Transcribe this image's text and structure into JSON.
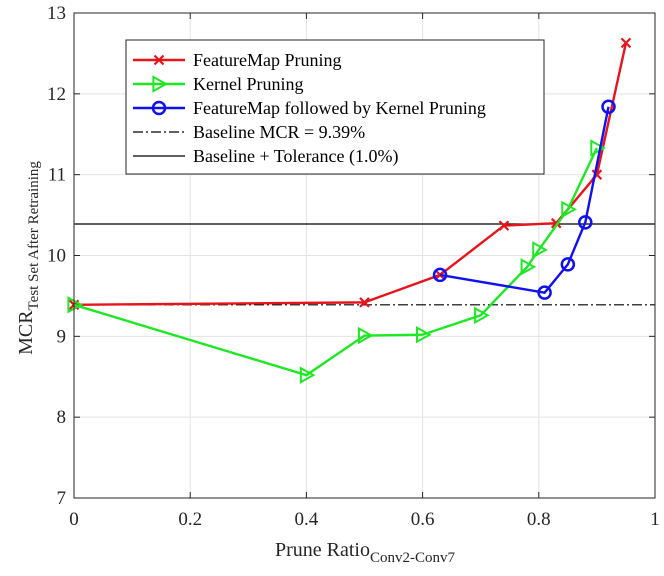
{
  "chart_data": {
    "type": "line",
    "title": "",
    "xlabel": "Prune Ratio",
    "xlabel_sub": "Conv2-Conv7",
    "ylabel": "MCR",
    "ylabel_sub": "Test Set After Retraining",
    "xlim": [
      0,
      1
    ],
    "ylim": [
      7,
      13
    ],
    "x_ticks": [
      0,
      0.2,
      0.4,
      0.6,
      0.8,
      1
    ],
    "x_tick_labels": [
      "0",
      "0.2",
      "0.4",
      "0.6",
      "0.8",
      "1"
    ],
    "y_ticks": [
      7,
      8,
      9,
      10,
      11,
      12,
      13
    ],
    "y_tick_labels": [
      "7",
      "8",
      "9",
      "10",
      "11",
      "12",
      "13"
    ],
    "grid": true,
    "legend_position": "top-left",
    "series": [
      {
        "name": "FeatureMap Pruning",
        "color": "#e8141c",
        "marker": "x",
        "x": [
          0,
          0.5,
          0.63,
          0.74,
          0.83,
          0.9,
          0.95
        ],
        "y": [
          9.39,
          9.42,
          9.76,
          10.37,
          10.4,
          11.0,
          12.63
        ]
      },
      {
        "name": "Kernel Pruning",
        "color": "#1ee823",
        "marker": "triangle-right",
        "x": [
          0,
          0.4,
          0.5,
          0.6,
          0.7,
          0.78,
          0.8,
          0.85,
          0.9
        ],
        "y": [
          9.39,
          8.52,
          9.01,
          9.02,
          9.26,
          9.86,
          10.07,
          10.57,
          11.33
        ]
      },
      {
        "name": "FeatureMap followed by Kernel Pruning",
        "color": "#1010f0",
        "marker": "circle",
        "x": [
          0.63,
          0.81,
          0.85,
          0.88,
          0.92
        ],
        "y": [
          9.76,
          9.54,
          9.89,
          10.41,
          11.84
        ]
      }
    ],
    "reference_lines": [
      {
        "name": "Baseline MCR = 9.39%",
        "y": 9.39,
        "style": "dashdot",
        "color": "#000000"
      },
      {
        "name": "Baseline + Tolerance (1.0%)",
        "y": 10.39,
        "style": "solid",
        "color": "#000000"
      }
    ]
  }
}
